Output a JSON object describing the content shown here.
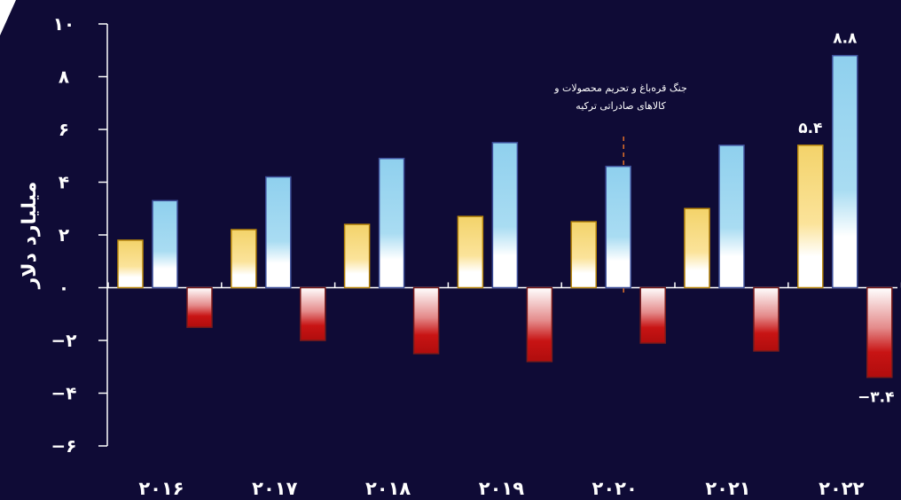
{
  "chart_data": {
    "type": "bar",
    "ylabel": "میلیارد دلار",
    "ylim": [
      -6,
      10
    ],
    "yticks": [
      {
        "value": 10,
        "label": "۱۰"
      },
      {
        "value": 8,
        "label": "۸"
      },
      {
        "value": 6,
        "label": "۶"
      },
      {
        "value": 4,
        "label": "۴"
      },
      {
        "value": 2,
        "label": "۲"
      },
      {
        "value": 0,
        "label": "۰"
      },
      {
        "value": -2,
        "label": "−۲"
      },
      {
        "value": -4,
        "label": "−۴"
      },
      {
        "value": -6,
        "label": "−۶"
      }
    ],
    "categories": [
      "۲۰۱۶",
      "۲۰۱۷",
      "۲۰۱۸",
      "۲۰۱۹",
      "۲۰۲۰",
      "۲۰۲۱",
      "۲۰۲۲"
    ],
    "series": [
      {
        "color": "#f3d36a",
        "values": [
          1.8,
          2.2,
          2.4,
          2.7,
          2.5,
          3.0,
          5.4
        ]
      },
      {
        "color": "#8fd0ee",
        "values": [
          3.3,
          4.2,
          4.9,
          5.5,
          4.6,
          5.4,
          8.8
        ]
      },
      {
        "color": "#c81414",
        "values": [
          -1.5,
          -2.0,
          -2.5,
          -2.8,
          -2.1,
          -2.4,
          -3.4
        ]
      }
    ],
    "data_labels": [
      {
        "series": 0,
        "index": 6,
        "text": "۵.۴"
      },
      {
        "series": 1,
        "index": 6,
        "text": "۸.۸"
      },
      {
        "series": 2,
        "index": 6,
        "text": "−۳.۴"
      }
    ],
    "annotation": {
      "between_category": 4,
      "lines": [
        "جنگ قره‌باغ و تحریم محصولات و",
        "کالاهای صادراتی ترکیه"
      ]
    },
    "grid": false,
    "legend": "none"
  }
}
